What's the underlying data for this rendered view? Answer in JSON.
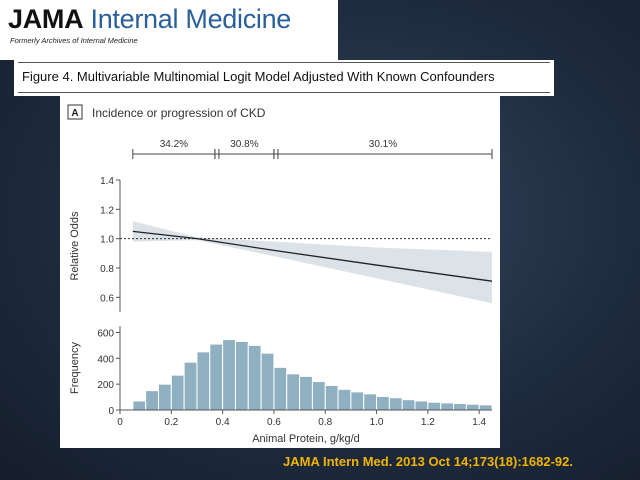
{
  "journal": {
    "name_part1": "JAMA",
    "name_part2": " Internal Medicine",
    "subtitle": "Formerly Archives of Internal Medicine"
  },
  "figure_title": "Figure 4. Multivariable Multinomial Logit Model Adjusted With Known Confounders",
  "citation": "JAMA Intern Med. 2013 Oct 14;173(18):1682-92.",
  "chart_data": [
    {
      "type": "line",
      "panel_label": "A",
      "title": "Incidence or progression of CKD",
      "ylabel": "Relative Odds",
      "xlim": [
        0,
        1.45
      ],
      "ylim": [
        0.5,
        1.4
      ],
      "yticks": [
        "0.6",
        "0.8",
        "1.0",
        "1.2",
        "1.4"
      ],
      "reference_line": 1.0,
      "segments": [
        {
          "from": 0.05,
          "to": 0.37,
          "label": "34.2%"
        },
        {
          "from": 0.37,
          "to": 0.6,
          "label": "30.8%"
        },
        {
          "from": 0.6,
          "to": 1.45,
          "label": "30.1%"
        }
      ],
      "series": [
        {
          "name": "Relative odds",
          "x": [
            0.05,
            0.3,
            0.6,
            1.0,
            1.45
          ],
          "y": [
            1.05,
            1.0,
            0.92,
            0.82,
            0.71
          ]
        },
        {
          "name": "95% CI upper",
          "x": [
            0.05,
            0.3,
            0.6,
            1.0,
            1.45
          ],
          "y": [
            1.12,
            1.01,
            0.98,
            0.94,
            0.91
          ]
        },
        {
          "name": "95% CI lower",
          "x": [
            0.05,
            0.3,
            0.6,
            1.0,
            1.45
          ],
          "y": [
            0.98,
            0.99,
            0.88,
            0.73,
            0.56
          ]
        }
      ]
    },
    {
      "type": "bar",
      "ylabel": "Frequency",
      "xlabel": "Animal Protein, g/kg/d",
      "xlim": [
        0,
        1.45
      ],
      "ylim": [
        0,
        650
      ],
      "yticks": [
        "0",
        "200",
        "400",
        "600"
      ],
      "xticks": [
        "0",
        "0.2",
        "0.4",
        "0.6",
        "0.8",
        "1.0",
        "1.2",
        "1.4"
      ],
      "bin_width": 0.05,
      "bin_starts": [
        0.05,
        0.1,
        0.15,
        0.2,
        0.25,
        0.3,
        0.35,
        0.4,
        0.45,
        0.5,
        0.55,
        0.6,
        0.65,
        0.7,
        0.75,
        0.8,
        0.85,
        0.9,
        0.95,
        1.0,
        1.05,
        1.1,
        1.15,
        1.2,
        1.25,
        1.3,
        1.35,
        1.4
      ],
      "values": [
        70,
        150,
        200,
        270,
        370,
        450,
        510,
        545,
        530,
        500,
        440,
        330,
        280,
        260,
        220,
        190,
        160,
        140,
        125,
        105,
        95,
        80,
        70,
        60,
        55,
        50,
        45,
        40
      ]
    }
  ],
  "colors": {
    "bar_fill": "#8fb0c1",
    "ci_band": "#dbe3e9",
    "line": "#222222",
    "citation": "#f2b400",
    "journal_accent": "#2a5f9a"
  }
}
